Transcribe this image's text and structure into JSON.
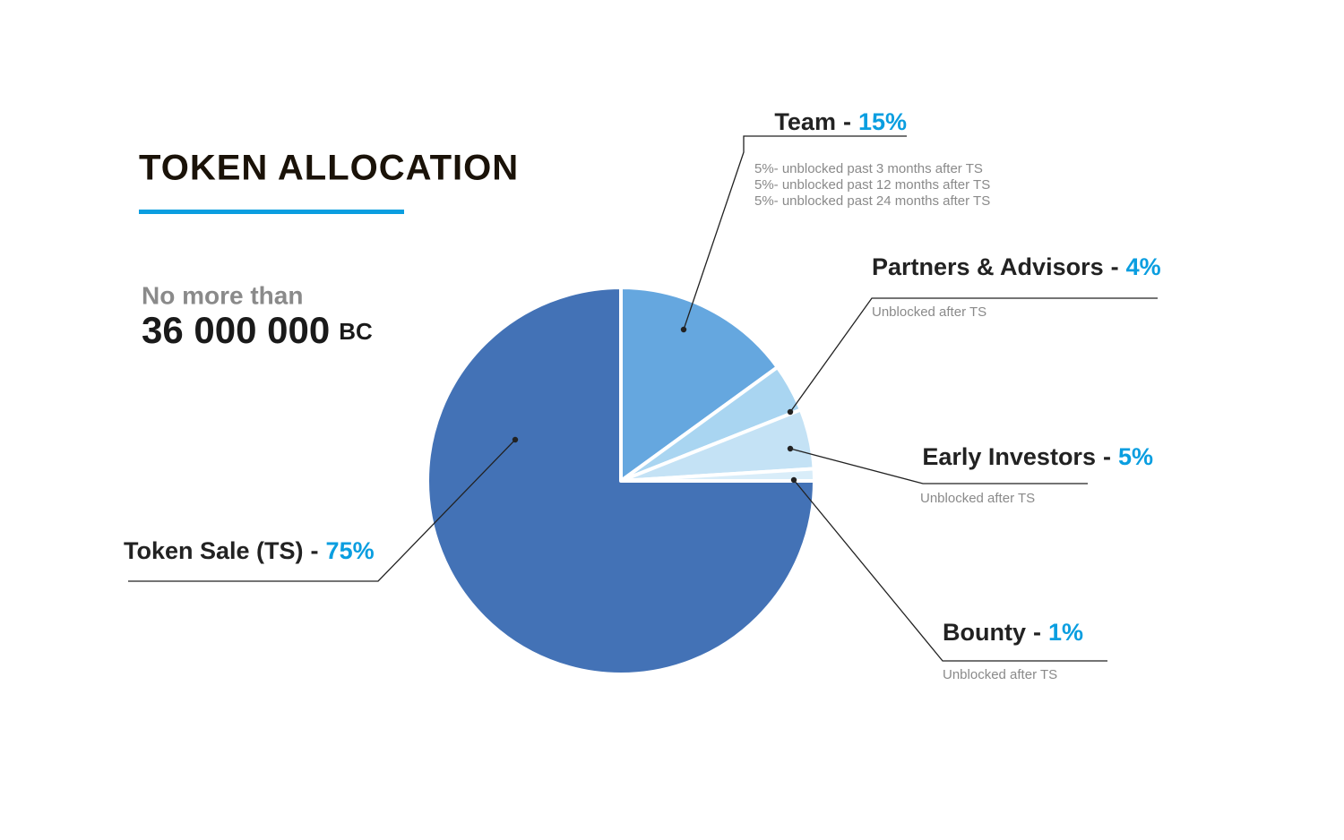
{
  "chart_data": {
    "type": "pie",
    "title": "TOKEN ALLOCATION",
    "subtitle": "No more than",
    "supply": "36 000 000",
    "supply_unit": "BC",
    "separator": "-",
    "categories": [
      "Team",
      "Partners & Advisors",
      "Early Investors",
      "Bounty",
      "Token Sale (TS)"
    ],
    "values": [
      15,
      4,
      5,
      1,
      75
    ],
    "value_labels": [
      "15%",
      "4%",
      "5%",
      "1%",
      "75%"
    ],
    "colors": [
      "#65a7df",
      "#a9d5f1",
      "#c4e2f5",
      "#d9edf9",
      "#4372b6"
    ],
    "notes": [
      [
        "5%- unblocked past 3 months after TS",
        "5%- unblocked past 12 months after TS",
        "5%- unblocked past 24 months after TS"
      ],
      [
        "Unblocked after TS"
      ],
      [
        "Unblocked after TS"
      ],
      [
        "Unblocked after TS"
      ],
      []
    ]
  }
}
